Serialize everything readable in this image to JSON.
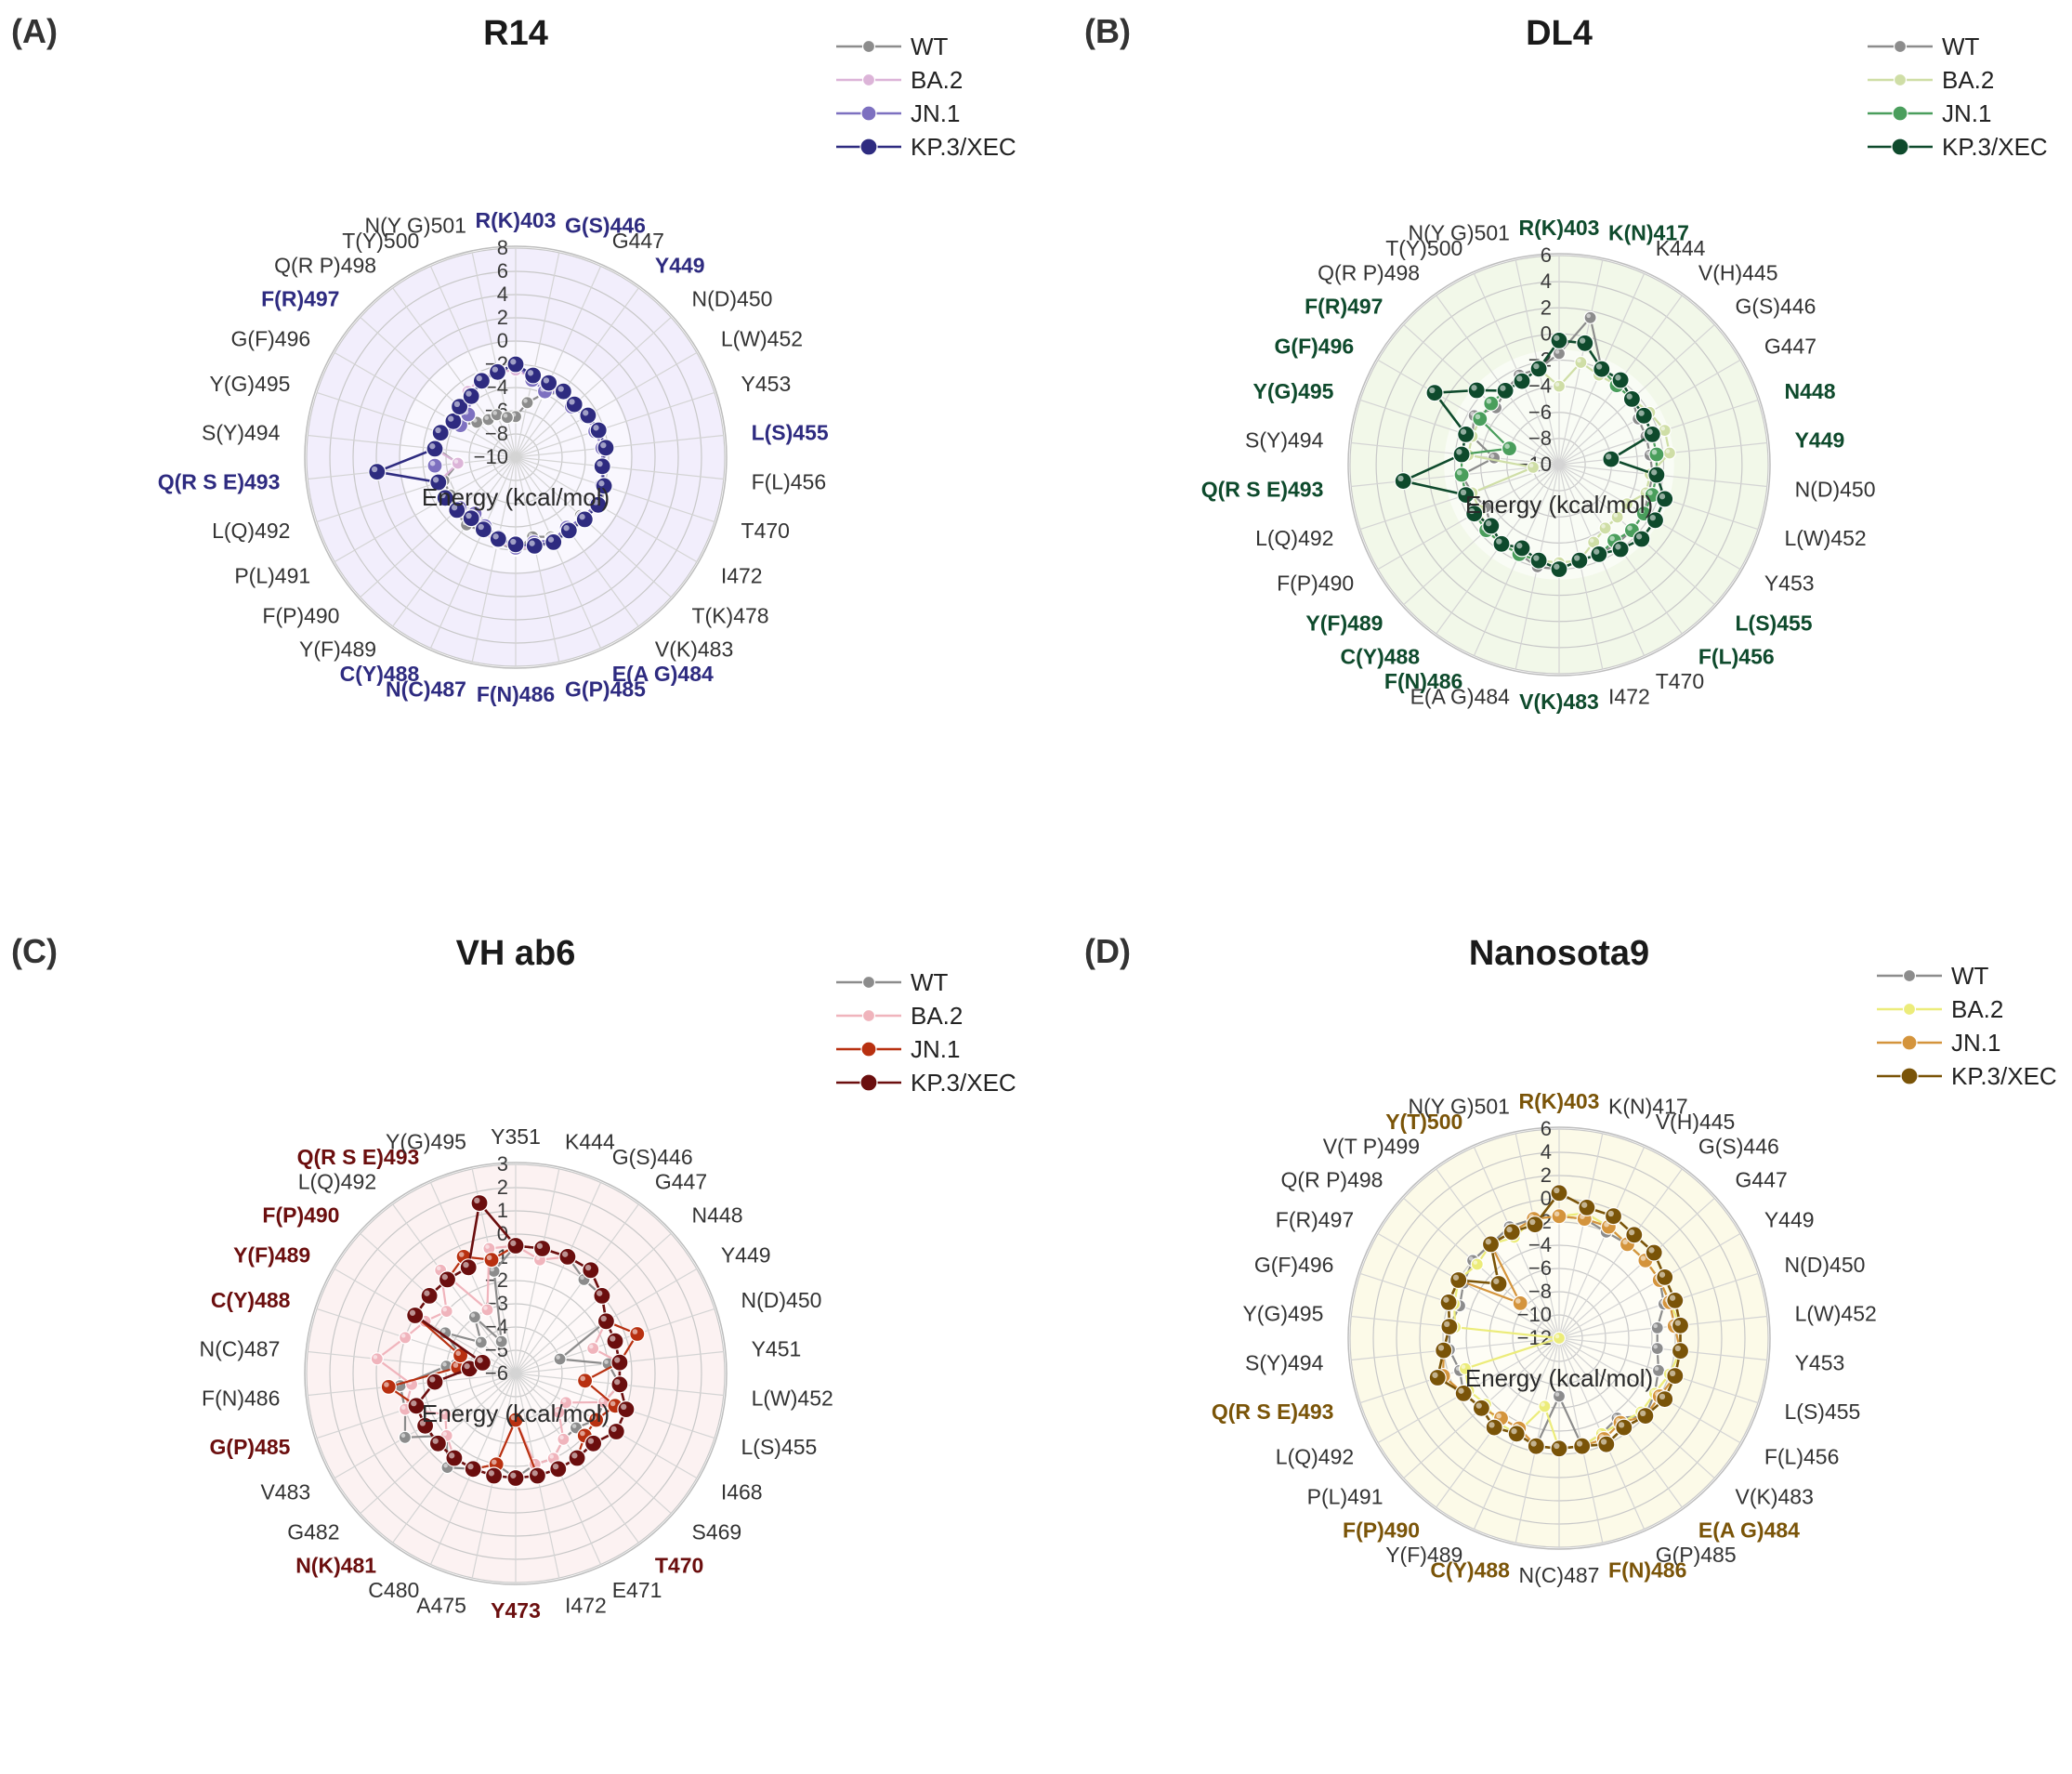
{
  "colors": {
    "wt": "#8c8c8c",
    "grid": "#c8c8c8",
    "spoke": "#d4d4d4",
    "axis_text": "#3a3a3a",
    "label_text": "#333333"
  },
  "chart_data": [
    {
      "type": "radar",
      "panel_label": "(A)",
      "title": "R14",
      "axis_title": "Energy (kcal/mol)",
      "rticks": [
        8,
        6,
        4,
        2,
        0,
        -2,
        -4,
        -6,
        -8,
        -10
      ],
      "rlim": [
        -10,
        8
      ],
      "accent": "#2e2b80",
      "bg": "#ede8fb",
      "categories": [
        "R(K)403",
        "G(S)446",
        "G447",
        "Y449",
        "N(D)450",
        "L(W)452",
        "Y453",
        "L(S)455",
        "F(L)456",
        "T470",
        "I472",
        "T(K)478",
        "V(K)483",
        "E(A G)484",
        "G(P)485",
        "F(N)486",
        "N(C)487",
        "C(Y)488",
        "Y(F)489",
        "F(P)490",
        "P(L)491",
        "L(Q)492",
        "Q(R S E)493",
        "S(Y)494",
        "Y(G)495",
        "G(F)496",
        "F(R)497",
        "Q(R P)498",
        "T(Y)500",
        "N(Y G)501"
      ],
      "bold_categories": [
        "R(K)403",
        "G(S)446",
        "Y449",
        "L(S)455",
        "E(A G)484",
        "G(P)485",
        "F(N)486",
        "N(C)487",
        "C(Y)488",
        "Q(R S E)493",
        "F(R)497"
      ],
      "series": [
        {
          "name": "WT",
          "color": "#8c8c8c",
          "values": [
            -6.5,
            -5.2,
            -4.0,
            -3.2,
            -3.5,
            -3.0,
            -2.8,
            -2.5,
            -2.5,
            -2.0,
            -1.5,
            -2.5,
            -2.0,
            -2.5,
            -3.0,
            -2.0,
            -2.5,
            -3.0,
            -2.8,
            -3.0,
            -3.5,
            -3.5,
            -5.0,
            -3.2,
            -3.0,
            -4.5,
            -5.5,
            -6.0,
            -6.0,
            -6.5
          ]
        },
        {
          "name": "BA.2",
          "color": "#dcb4d8",
          "values": [
            -2.5,
            -3.0,
            -3.5,
            -3.2,
            -3.5,
            -3.0,
            -2.8,
            -2.5,
            -2.5,
            -2.2,
            -2.0,
            -2.2,
            -2.5,
            -2.2,
            -2.0,
            -2.2,
            -2.5,
            -3.0,
            -4.0,
            -3.2,
            -3.2,
            -3.0,
            -5.0,
            -3.0,
            -3.2,
            -3.5,
            -3.5,
            -3.0,
            -2.5,
            -2.5
          ]
        },
        {
          "name": "JN.1",
          "color": "#7d70c0",
          "values": [
            -2.0,
            -3.2,
            -3.8,
            -3.2,
            -3.5,
            -3.0,
            -2.8,
            -2.5,
            -2.5,
            -2.2,
            -2.0,
            -2.2,
            -2.5,
            -2.2,
            -2.5,
            -2.2,
            -3.0,
            -3.5,
            -4.0,
            -3.5,
            -3.0,
            -3.0,
            -3.0,
            -3.0,
            -3.2,
            -4.5,
            -4.5,
            -3.5,
            -2.8,
            -2.5
          ]
        },
        {
          "name": "KP.3/XEC",
          "color": "#2e2b80",
          "values": [
            -2.0,
            -2.8,
            -3.0,
            -3.0,
            -3.2,
            -2.8,
            -2.5,
            -2.2,
            -2.5,
            -2.0,
            -1.8,
            -2.0,
            -2.2,
            -2.0,
            -2.2,
            -2.5,
            -2.8,
            -3.2,
            -3.5,
            -3.2,
            -3.0,
            -3.0,
            2.0,
            -3.0,
            -3.2,
            -3.8,
            -3.5,
            -3.5,
            -2.8,
            -2.5
          ]
        }
      ]
    },
    {
      "type": "radar",
      "panel_label": "(B)",
      "title": "DL4",
      "axis_title": "Energy (kcal/mol)",
      "rticks": [
        6,
        4,
        2,
        0,
        -2,
        -4,
        -6,
        -8,
        -10
      ],
      "rlim": [
        -10,
        6
      ],
      "accent": "#0e4a2c",
      "bg": "#eef6e2",
      "categories": [
        "R(K)403",
        "K(N)417",
        "K444",
        "V(H)445",
        "G(S)446",
        "G447",
        "N448",
        "Y449",
        "N(D)450",
        "L(W)452",
        "Y453",
        "L(S)455",
        "F(L)456",
        "T470",
        "I472",
        "V(K)483",
        "E(A G)484",
        "F(N)486",
        "C(Y)488",
        "Y(F)489",
        "F(P)490",
        "L(Q)492",
        "Q(R S E)493",
        "S(Y)494",
        "Y(G)495",
        "G(F)496",
        "F(R)497",
        "Q(R P)498",
        "T(Y)500",
        "N(Y G)501"
      ],
      "bold_categories": [
        "R(K)403",
        "K(N)417",
        "N448",
        "Y449",
        "L(S)455",
        "F(L)456",
        "V(K)483",
        "F(N)486",
        "C(Y)488",
        "Y(F)489",
        "Q(R S E)493",
        "Y(G)495",
        "G(F)496",
        "F(R)497"
      ],
      "series": [
        {
          "name": "WT",
          "color": "#8c8c8c",
          "values": [
            -1.5,
            1.5,
            -2.0,
            -2.5,
            -2.5,
            -3.0,
            -3.0,
            -3.0,
            -2.8,
            -2.8,
            -2.5,
            -2.5,
            -2.5,
            -2.5,
            -2.5,
            -2.0,
            -2.0,
            -2.5,
            -2.5,
            -3.0,
            -3.5,
            -3.0,
            -2.5,
            -5.0,
            -3.0,
            -2.5,
            -3.5,
            -3.0,
            -2.5,
            -2.5
          ]
        },
        {
          "name": "BA.2",
          "color": "#cfdea6",
          "values": [
            -4.0,
            -2.0,
            -2.5,
            -2.5,
            -2.5,
            -2.0,
            -1.5,
            -1.5,
            -3.0,
            -3.0,
            -4.0,
            -4.0,
            -4.0,
            -3.5,
            -2.5,
            -2.5,
            -2.5,
            -2.5,
            -2.5,
            -2.5,
            -3.0,
            -3.0,
            -8.0,
            -3.0,
            -3.0,
            -3.0,
            -3.0,
            -3.0,
            -3.0,
            -2.5
          ]
        },
        {
          "name": "JN.1",
          "color": "#4a9e5c",
          "values": [
            -0.5,
            -0.5,
            -2.0,
            -2.5,
            -2.5,
            -2.5,
            -2.5,
            -2.5,
            -2.5,
            -2.5,
            -2.5,
            -2.5,
            -2.8,
            -2.5,
            -2.5,
            -2.0,
            -2.5,
            -2.5,
            -2.5,
            -2.5,
            -2.5,
            -2.5,
            -2.5,
            -2.5,
            -6.0,
            -3.0,
            -3.0,
            -3.0,
            -3.0,
            -2.5
          ]
        },
        {
          "name": "KP.3/XEC",
          "color": "#0e4a2c",
          "values": [
            -0.5,
            -0.5,
            -2.0,
            -2.0,
            -2.5,
            -2.5,
            -2.5,
            -6.0,
            -2.5,
            -1.5,
            -1.5,
            -1.5,
            -2.0,
            -2.5,
            -2.5,
            -2.0,
            -2.5,
            -3.0,
            -2.5,
            -3.0,
            -2.5,
            -2.5,
            2.0,
            -2.5,
            -2.5,
            1.0,
            -1.5,
            -3.0,
            -3.0,
            -2.5
          ]
        }
      ]
    },
    {
      "type": "radar",
      "panel_label": "(C)",
      "title": "VH ab6",
      "axis_title": "Energy (kcal/mol)",
      "rticks": [
        3,
        2,
        1,
        0,
        -1,
        -2,
        -3,
        -4,
        -5,
        -6
      ],
      "rlim": [
        -6,
        3
      ],
      "accent": "#6b0e0e",
      "bg": "#fbeeee",
      "categories": [
        "Y351",
        "K444",
        "G(S)446",
        "G447",
        "N448",
        "Y449",
        "N(D)450",
        "Y451",
        "L(W)452",
        "L(S)455",
        "I468",
        "S469",
        "T470",
        "E471",
        "I472",
        "Y473",
        "A475",
        "C480",
        "N(K)481",
        "G482",
        "V483",
        "G(P)485",
        "F(N)486",
        "N(C)487",
        "C(Y)488",
        "Y(F)489",
        "F(P)490",
        "L(Q)492",
        "Q(R S E)493",
        "Y(G)495"
      ],
      "bold_categories": [
        "T470",
        "Y473",
        "N(K)481",
        "G(P)485",
        "C(Y)488",
        "Y(F)489",
        "F(P)490",
        "Q(R S E)493"
      ],
      "series": [
        {
          "name": "WT",
          "color": "#8c8c8c",
          "values": [
            -0.5,
            -0.5,
            -0.5,
            -1.0,
            -1.0,
            -1.5,
            -4.0,
            -2.0,
            -1.5,
            -2.0,
            -2.0,
            -2.5,
            -2.5,
            -2.0,
            -2.0,
            -1.5,
            -2.0,
            -1.5,
            -1.0,
            -2.0,
            -0.5,
            -1.0,
            -1.0,
            -3.0,
            -3.5,
            -2.5,
            -4.0,
            -3.0,
            -4.5,
            -1.5
          ]
        },
        {
          "name": "BA.2",
          "color": "#f0b4bc",
          "values": [
            -0.5,
            -1.0,
            -0.5,
            -0.5,
            -1.0,
            -1.5,
            -2.5,
            -1.5,
            -1.5,
            -2.0,
            -3.5,
            -3.5,
            -2.5,
            -2.0,
            -2.0,
            -4.0,
            -2.0,
            -1.5,
            -1.5,
            -2.0,
            -2.5,
            -1.0,
            -1.5,
            0.0,
            -1.0,
            -1.5,
            -2.0,
            -0.5,
            -3.0,
            -0.5
          ]
        },
        {
          "name": "JN.1",
          "color": "#b83010",
          "values": [
            -0.5,
            -0.5,
            -0.5,
            -0.5,
            -1.0,
            -1.5,
            -0.5,
            -1.5,
            -3.0,
            -1.5,
            -2.0,
            -2.0,
            -1.5,
            -1.5,
            -1.5,
            -4.0,
            -2.0,
            -1.5,
            -1.5,
            -1.5,
            -1.5,
            -1.5,
            -0.5,
            -3.5,
            -3.5,
            -1.0,
            -1.0,
            -1.0,
            -0.5,
            -1.0
          ]
        },
        {
          "name": "KP.3/XEC",
          "color": "#6b0e0e",
          "values": [
            -0.5,
            -0.5,
            -0.5,
            -0.5,
            -1.0,
            -1.5,
            -1.5,
            -1.5,
            -1.5,
            -1.0,
            -1.0,
            -1.5,
            -1.5,
            -1.5,
            -1.5,
            -1.5,
            -1.5,
            -1.5,
            -1.5,
            -1.5,
            -1.5,
            -1.5,
            -2.5,
            -4.0,
            -4.5,
            -1.0,
            -1.0,
            -1.0,
            -1.0,
            1.5
          ]
        }
      ]
    },
    {
      "type": "radar",
      "panel_label": "(D)",
      "title": "Nanosota9",
      "axis_title": "Energy (kcal/mol)",
      "rticks": [
        6,
        4,
        2,
        0,
        -2,
        -4,
        -6,
        -8,
        -10,
        -12
      ],
      "rlim": [
        -12,
        6
      ],
      "accent": "#7a5408",
      "bg": "#fbf8e0",
      "categories": [
        "R(K)403",
        "K(N)417",
        "V(H)445",
        "G(S)446",
        "G447",
        "Y449",
        "N(D)450",
        "L(W)452",
        "Y453",
        "L(S)455",
        "F(L)456",
        "V(K)483",
        "E(A G)484",
        "G(P)485",
        "F(N)486",
        "N(C)487",
        "C(Y)488",
        "Y(F)489",
        "F(P)490",
        "P(L)491",
        "L(Q)492",
        "Q(R S E)493",
        "S(Y)494",
        "Y(G)495",
        "G(F)496",
        "F(R)497",
        "Q(R P)498",
        "V(T P)499",
        "Y(T)500",
        "N(Y G)501"
      ],
      "bold_categories": [
        "R(K)403",
        "E(A G)484",
        "F(N)486",
        "C(Y)488",
        "F(P)490",
        "Q(R S E)493",
        "Y(T)500"
      ],
      "series": [
        {
          "name": "WT",
          "color": "#8c8c8c",
          "values": [
            -1.5,
            -1.5,
            -2.0,
            -2.0,
            -2.0,
            -2.0,
            -2.5,
            -3.5,
            -3.5,
            -3.0,
            -2.5,
            -2.0,
            -3.5,
            -3.0,
            -2.5,
            -7.0,
            -2.5,
            -3.0,
            -2.5,
            -3.0,
            -2.5,
            -3.0,
            -2.5,
            -2.5,
            -3.0,
            -2.5,
            -2.0,
            -2.0,
            -1.5,
            -1.5
          ]
        },
        {
          "name": "BA.2",
          "color": "#ecec7a",
          "values": [
            -1.5,
            -1.0,
            -1.5,
            -2.0,
            -2.0,
            -2.0,
            -2.0,
            -1.5,
            -1.5,
            -2.0,
            -2.5,
            -2.5,
            -3.0,
            -3.0,
            -2.5,
            -2.5,
            -6.0,
            -3.0,
            -3.0,
            -3.5,
            -3.0,
            -3.5,
            -12.0,
            -3.0,
            -2.5,
            -2.0,
            -2.5,
            -2.0,
            -2.5,
            -1.5
          ]
        },
        {
          "name": "JN.1",
          "color": "#d4943c",
          "values": [
            -1.5,
            -1.5,
            -1.5,
            -2.0,
            -2.0,
            -2.0,
            -2.0,
            -2.0,
            -1.5,
            -1.5,
            -2.0,
            -2.0,
            -3.0,
            -2.5,
            -2.5,
            -2.5,
            -2.5,
            -3.5,
            -3.5,
            -3.0,
            -2.5,
            -1.5,
            -2.0,
            -2.5,
            -2.0,
            -2.0,
            -7.5,
            -2.0,
            -2.0,
            -1.5
          ]
        },
        {
          "name": "KP.3/XEC",
          "color": "#7a5408",
          "values": [
            0.5,
            -0.5,
            -0.5,
            -1.0,
            -1.0,
            -1.5,
            -1.5,
            -1.5,
            -1.5,
            -1.5,
            -1.5,
            -2.0,
            -2.5,
            -2.0,
            -2.5,
            -2.5,
            -2.5,
            -3.0,
            -2.5,
            -3.0,
            -2.5,
            -1.0,
            -2.0,
            -2.5,
            -2.0,
            -2.0,
            -5.0,
            -2.0,
            -2.0,
            -2.0
          ]
        }
      ]
    }
  ]
}
